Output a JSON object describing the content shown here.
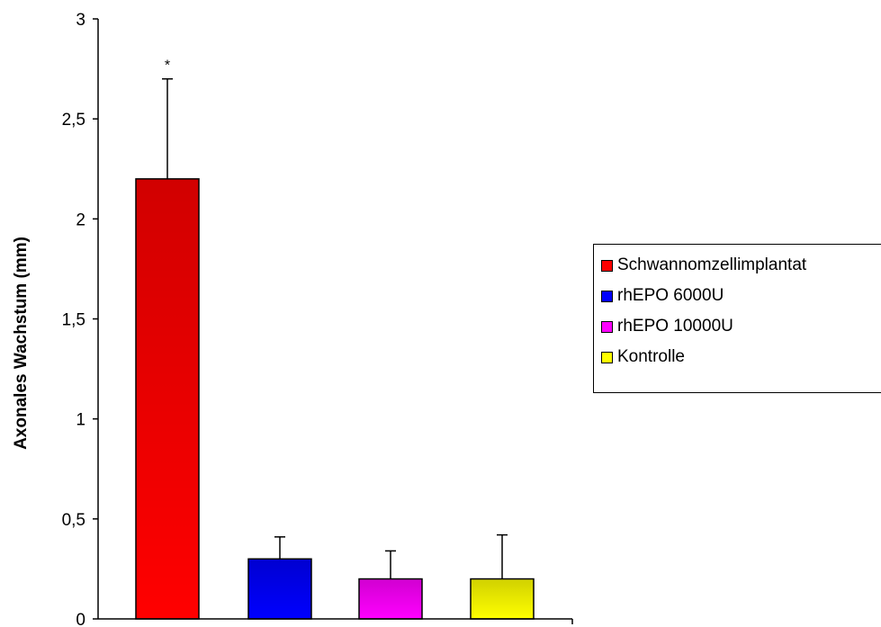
{
  "chart_data": {
    "type": "bar",
    "title": "",
    "xlabel": "",
    "ylabel": "Axonales Wachstum (mm)",
    "ylim": [
      0,
      3
    ],
    "yticks": [
      0,
      0.5,
      1,
      1.5,
      2,
      2.5,
      3
    ],
    "ytick_labels": [
      "0",
      "0,5",
      "1",
      "1,5",
      "2",
      "2,5",
      "3"
    ],
    "grid": false,
    "legend_position": "right",
    "series": [
      {
        "name": "Schwannomzellimplantat",
        "value": 2.2,
        "error": 0.5,
        "color": "#ff0000",
        "annotation": "*"
      },
      {
        "name": "rhEPO 6000U",
        "value": 0.3,
        "error": 0.11,
        "color": "#0000ff",
        "annotation": ""
      },
      {
        "name": "rhEPO 10000U",
        "value": 0.2,
        "error": 0.14,
        "color": "#ff00ff",
        "annotation": ""
      },
      {
        "name": "Kontrolle",
        "value": 0.2,
        "error": 0.22,
        "color": "#ffff00",
        "annotation": ""
      }
    ]
  }
}
